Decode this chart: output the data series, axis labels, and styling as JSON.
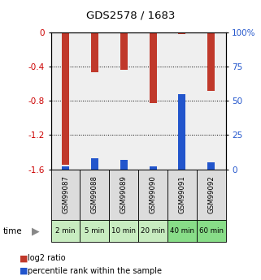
{
  "title": "GDS2578 / 1683",
  "samples": [
    "GSM99087",
    "GSM99088",
    "GSM99089",
    "GSM99090",
    "GSM99091",
    "GSM99092"
  ],
  "time_labels": [
    "2 min",
    "5 min",
    "10 min",
    "20 min",
    "40 min",
    "60 min"
  ],
  "log2_values": [
    -1.55,
    -0.47,
    -0.44,
    -0.83,
    -0.02,
    -0.68
  ],
  "percentile_values": [
    2,
    8,
    7,
    2,
    55,
    5
  ],
  "ylim_left": [
    -1.6,
    0.0
  ],
  "ylim_right": [
    0,
    100
  ],
  "yticks_left": [
    0.0,
    -0.4,
    -0.8,
    -1.2,
    -1.6
  ],
  "yticks_right": [
    0,
    25,
    50,
    75,
    100
  ],
  "bar_color_red": "#C0392B",
  "bar_color_blue": "#2255CC",
  "bg_plot": "#EFEFEF",
  "bg_sample": "#DCDCDC",
  "bg_time_colors": [
    "#C8ECC0",
    "#C8ECC0",
    "#C8ECC0",
    "#C8ECC0",
    "#88DD88",
    "#88DD88"
  ],
  "legend_red_label": "log2 ratio",
  "legend_blue_label": "percentile rank within the sample",
  "bar_width": 0.25,
  "blue_bar_width": 0.25
}
